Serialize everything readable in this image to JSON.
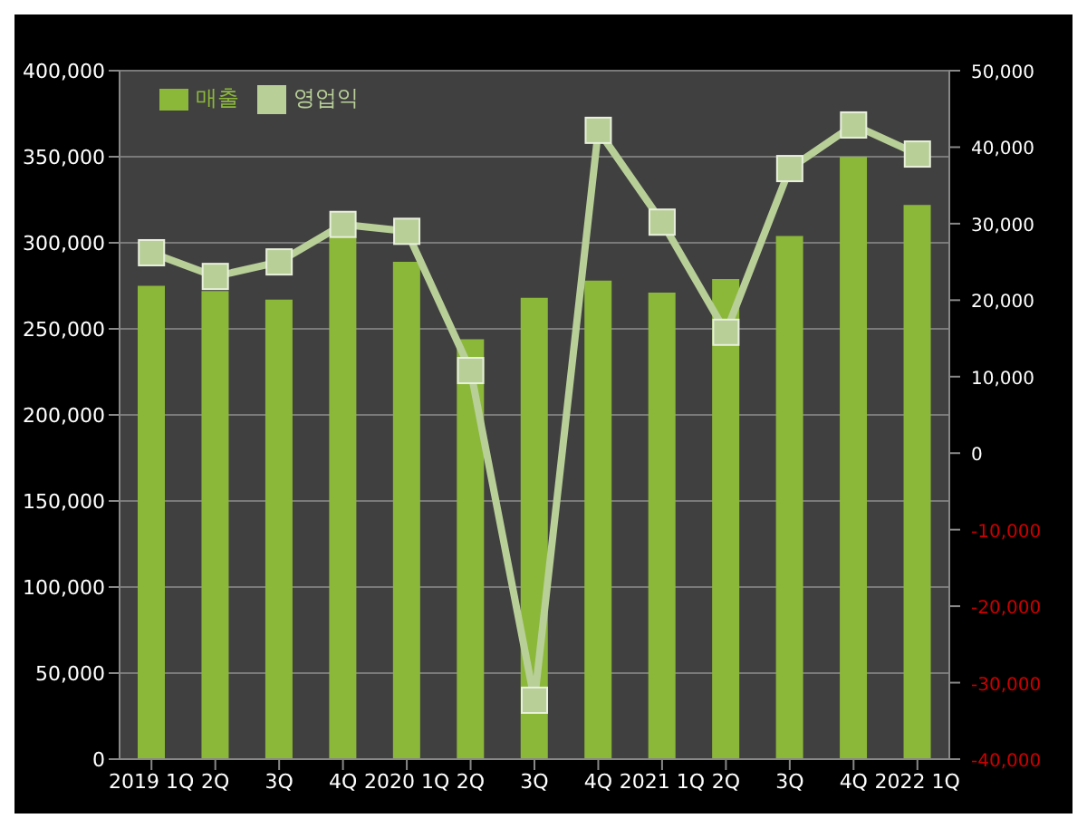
{
  "chart_data": {
    "type": "bar",
    "categories": [
      "2019 1Q",
      "2Q",
      "3Q",
      "4Q",
      "2020 1Q",
      "2Q",
      "3Q",
      "4Q",
      "2021 1Q",
      "2Q",
      "3Q",
      "4Q",
      "2022 1Q"
    ],
    "series": [
      {
        "name": "매출",
        "color": "#8cb83a",
        "values": [
          275000,
          272000,
          267000,
          303000,
          289000,
          244000,
          268000,
          278000,
          271000,
          279000,
          304000,
          350000,
          322000
        ]
      },
      {
        "name": "영업익",
        "type": "line",
        "axis": "y2",
        "color": "#b8cf98",
        "marker": "square",
        "values": [
          26200,
          23100,
          25000,
          29900,
          29000,
          10800,
          -32300,
          42200,
          30200,
          15800,
          37200,
          42900,
          39100
        ]
      }
    ],
    "ylim": [
      0,
      400000
    ],
    "yticks": [
      {
        "value": 0,
        "label": "0"
      },
      {
        "value": 50000,
        "label": "50,000"
      },
      {
        "value": 100000,
        "label": "100,000"
      },
      {
        "value": 150000,
        "label": "150,000"
      },
      {
        "value": 200000,
        "label": "200,000"
      },
      {
        "value": 250000,
        "label": "250,000"
      },
      {
        "value": 300000,
        "label": "300,000"
      },
      {
        "value": 350000,
        "label": "350,000"
      },
      {
        "value": 400000,
        "label": "400,000"
      }
    ],
    "y2lim": [
      -40000,
      50000
    ],
    "y2ticks": [
      {
        "value": -40000,
        "label": "-40,000"
      },
      {
        "value": -30000,
        "label": "-30,000"
      },
      {
        "value": -20000,
        "label": "-20,000"
      },
      {
        "value": -10000,
        "label": "-10,000"
      },
      {
        "value": 0,
        "label": "0"
      },
      {
        "value": 10000,
        "label": "10,000"
      },
      {
        "value": 20000,
        "label": "20,000"
      },
      {
        "value": 30000,
        "label": "30,000"
      },
      {
        "value": 40000,
        "label": "40,000"
      },
      {
        "value": 50000,
        "label": "50,000"
      }
    ],
    "grid": "y",
    "legend": "top left"
  }
}
